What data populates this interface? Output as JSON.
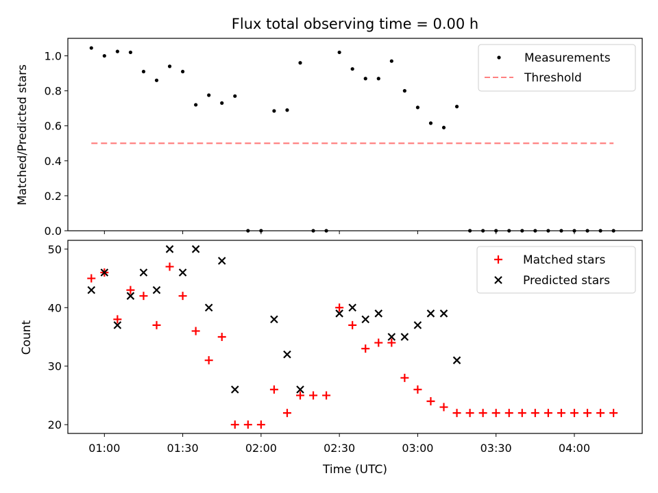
{
  "title": "Flux total observing time = 0.00 h",
  "chart_data": [
    {
      "type": "scatter",
      "title": "Flux total observing time = 0.00 h",
      "xlabel": "",
      "ylabel": "Matched/Predicted stars",
      "xlim": [
        "00:46",
        "04:26"
      ],
      "ylim": [
        0.0,
        1.1
      ],
      "yticks": [
        "0.0",
        "0.2",
        "0.4",
        "0.6",
        "0.8",
        "1.0"
      ],
      "legend_position": "top-right",
      "series": [
        {
          "name": "Measurements",
          "marker": "dot",
          "color": "#000000",
          "x": [
            "00:55",
            "01:00",
            "01:05",
            "01:10",
            "01:15",
            "01:20",
            "01:25",
            "01:30",
            "01:35",
            "01:40",
            "01:45",
            "01:50",
            "01:55",
            "02:00",
            "02:05",
            "02:10",
            "02:15",
            "02:20",
            "02:25",
            "02:30",
            "02:35",
            "02:40",
            "02:45",
            "02:50",
            "02:55",
            "03:00",
            "03:05",
            "03:10",
            "03:15",
            "03:20",
            "03:25",
            "03:30",
            "03:35",
            "03:40",
            "03:45",
            "03:50",
            "03:55",
            "04:00",
            "04:05",
            "04:10",
            "04:15"
          ],
          "y": [
            1.045,
            1.0,
            1.025,
            1.02,
            0.91,
            0.86,
            0.94,
            0.91,
            0.72,
            0.775,
            0.73,
            0.77,
            0.0,
            0.0,
            0.685,
            0.69,
            0.96,
            0.0,
            0.0,
            1.02,
            0.925,
            0.87,
            0.87,
            0.97,
            0.8,
            0.705,
            0.615,
            0.59,
            0.71,
            0.0,
            0.0,
            0.0,
            0.0,
            0.0,
            0.0,
            0.0,
            0.0,
            0.0,
            0.0,
            0.0,
            0.0
          ]
        },
        {
          "name": "Threshold",
          "type": "line",
          "style": "dashed",
          "color": "#ff8080",
          "x": [
            "00:55",
            "04:15"
          ],
          "y": [
            0.5,
            0.5
          ]
        }
      ]
    },
    {
      "type": "scatter",
      "xlabel": "Time (UTC)",
      "ylabel": "Count",
      "xlim": [
        "00:46",
        "04:26"
      ],
      "ylim": [
        18.5,
        51.5
      ],
      "yticks": [
        "20",
        "30",
        "40",
        "50"
      ],
      "xticks": [
        "01:00",
        "01:30",
        "02:00",
        "02:30",
        "03:00",
        "03:30",
        "04:00"
      ],
      "legend_position": "top-right",
      "series": [
        {
          "name": "Matched stars",
          "marker": "plus",
          "color": "#ff0000",
          "x": [
            "00:55",
            "01:00",
            "01:05",
            "01:10",
            "01:15",
            "01:20",
            "01:25",
            "01:30",
            "01:35",
            "01:40",
            "01:45",
            "01:50",
            "01:55",
            "02:00",
            "02:05",
            "02:10",
            "02:15",
            "02:20",
            "02:25",
            "02:30",
            "02:35",
            "02:40",
            "02:45",
            "02:50",
            "02:55",
            "03:00",
            "03:05",
            "03:10",
            "03:15",
            "03:20",
            "03:25",
            "03:30",
            "03:35",
            "03:40",
            "03:45",
            "03:50",
            "03:55",
            "04:00",
            "04:05",
            "04:10",
            "04:15"
          ],
          "y": [
            45,
            46,
            38,
            43,
            42,
            37,
            47,
            42,
            36,
            31,
            35,
            20,
            20,
            20,
            26,
            22,
            25,
            25,
            25,
            40,
            37,
            33,
            34,
            34,
            28,
            26,
            24,
            23,
            22,
            22,
            22,
            22,
            22,
            22,
            22,
            22,
            22,
            22,
            22,
            22,
            22
          ]
        },
        {
          "name": "Predicted stars",
          "marker": "x",
          "color": "#000000",
          "x": [
            "00:55",
            "01:00",
            "01:05",
            "01:10",
            "01:15",
            "01:20",
            "01:25",
            "01:30",
            "01:35",
            "01:40",
            "01:45",
            "01:50",
            "02:05",
            "02:10",
            "02:15",
            "02:30",
            "02:35",
            "02:40",
            "02:45",
            "02:50",
            "02:55",
            "03:00",
            "03:05",
            "03:10",
            "03:15"
          ],
          "y": [
            43,
            46,
            37,
            42,
            46,
            43,
            50,
            46,
            50,
            40,
            48,
            26,
            38,
            32,
            26,
            39,
            40,
            38,
            39,
            35,
            35,
            37,
            39,
            39,
            31
          ]
        }
      ]
    }
  ]
}
